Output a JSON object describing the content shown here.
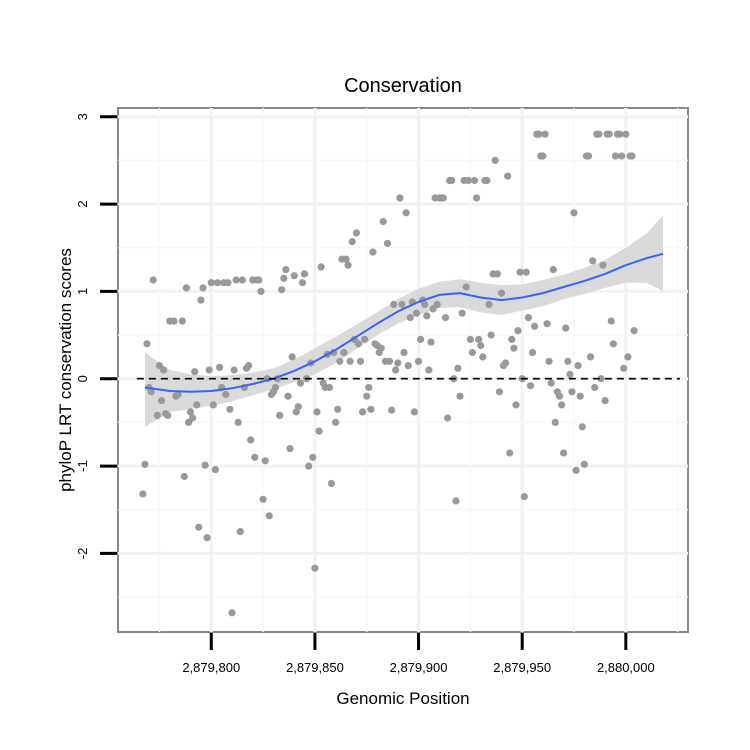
{
  "chart_data": {
    "type": "scatter",
    "title": "Conservation",
    "xlabel": "Genomic Position",
    "ylabel": "phyloP LRT conservation scores",
    "xlim": [
      2879755,
      2880030
    ],
    "ylim": [
      -2.9,
      3.1
    ],
    "x_ticks": [
      2879800,
      2879850,
      2879900,
      2879950,
      2880000
    ],
    "x_tick_labels": [
      "2,879,800",
      "2,879,850",
      "2,879,900",
      "2,879,950",
      "2,880,000"
    ],
    "y_ticks": [
      -2,
      -1,
      0,
      1,
      2,
      3
    ],
    "y_tick_labels": [
      "-2",
      "-1",
      "0",
      "1",
      "2",
      "3"
    ],
    "reference_line": {
      "y": 0,
      "style": "dashed"
    },
    "point_color": "#999999",
    "smooth_color": "#3366ff",
    "band_color": "#d3d3d3",
    "points": [
      [
        2879767,
        -1.32
      ],
      [
        2879768,
        -0.98
      ],
      [
        2879769,
        0.4
      ],
      [
        2879770,
        -0.1
      ],
      [
        2879771,
        -0.15
      ],
      [
        2879772,
        1.13
      ],
      [
        2879774,
        -0.42
      ],
      [
        2879775,
        0.15
      ],
      [
        2879776,
        -0.25
      ],
      [
        2879777,
        0.1
      ],
      [
        2879778,
        -0.4
      ],
      [
        2879779,
        -0.42
      ],
      [
        2879780,
        0.66
      ],
      [
        2879782,
        0.66
      ],
      [
        2879783,
        -0.2
      ],
      [
        2879784,
        -0.18
      ],
      [
        2879786,
        0.66
      ],
      [
        2879787,
        -1.12
      ],
      [
        2879788,
        1.04
      ],
      [
        2879789,
        -0.5
      ],
      [
        2879790,
        -0.38
      ],
      [
        2879791,
        -0.45
      ],
      [
        2879792,
        0.08
      ],
      [
        2879793,
        -0.3
      ],
      [
        2879794,
        -1.7
      ],
      [
        2879795,
        0.9
      ],
      [
        2879796,
        1.04
      ],
      [
        2879797,
        -0.99
      ],
      [
        2879798,
        -1.82
      ],
      [
        2879799,
        0.1
      ],
      [
        2879800,
        1.1
      ],
      [
        2879801,
        -0.3
      ],
      [
        2879802,
        -1.04
      ],
      [
        2879803,
        1.1
      ],
      [
        2879804,
        0.13
      ],
      [
        2879805,
        -0.1
      ],
      [
        2879806,
        1.1
      ],
      [
        2879807,
        -0.18
      ],
      [
        2879808,
        1.1
      ],
      [
        2879809,
        -0.35
      ],
      [
        2879810,
        -2.68
      ],
      [
        2879811,
        0.1
      ],
      [
        2879812,
        1.13
      ],
      [
        2879813,
        -0.5
      ],
      [
        2879814,
        -1.75
      ],
      [
        2879815,
        1.13
      ],
      [
        2879816,
        -0.1
      ],
      [
        2879817,
        0.12
      ],
      [
        2879818,
        0.15
      ],
      [
        2879819,
        -0.7
      ],
      [
        2879820,
        1.13
      ],
      [
        2879821,
        -0.9
      ],
      [
        2879822,
        1.13
      ],
      [
        2879823,
        1.13
      ],
      [
        2879824,
        1.0
      ],
      [
        2879825,
        -1.38
      ],
      [
        2879826,
        -0.94
      ],
      [
        2879827,
        0.0
      ],
      [
        2879828,
        -1.57
      ],
      [
        2879829,
        -0.18
      ],
      [
        2879830,
        -0.15
      ],
      [
        2879831,
        -0.1
      ],
      [
        2879832,
        0.0
      ],
      [
        2879833,
        -0.42
      ],
      [
        2879834,
        1.02
      ],
      [
        2879835,
        1.15
      ],
      [
        2879836,
        1.25
      ],
      [
        2879837,
        -0.2
      ],
      [
        2879838,
        -0.8
      ],
      [
        2879839,
        0.25
      ],
      [
        2879840,
        1.18
      ],
      [
        2879841,
        -0.38
      ],
      [
        2879842,
        -0.32
      ],
      [
        2879843,
        -0.05
      ],
      [
        2879844,
        1.1
      ],
      [
        2879845,
        1.2
      ],
      [
        2879846,
        0.0
      ],
      [
        2879847,
        -1.0
      ],
      [
        2879848,
        0.18
      ],
      [
        2879849,
        -0.9
      ],
      [
        2879850,
        -2.17
      ],
      [
        2879851,
        -0.38
      ],
      [
        2879852,
        -0.6
      ],
      [
        2879853,
        1.28
      ],
      [
        2879854,
        -0.05
      ],
      [
        2879855,
        -0.1
      ],
      [
        2879856,
        0.28
      ],
      [
        2879857,
        -0.1
      ],
      [
        2879858,
        -1.2
      ],
      [
        2879859,
        0.3
      ],
      [
        2879860,
        -0.5
      ],
      [
        2879861,
        -0.35
      ],
      [
        2879862,
        0.2
      ],
      [
        2879863,
        1.37
      ],
      [
        2879864,
        0.3
      ],
      [
        2879865,
        1.37
      ],
      [
        2879866,
        1.3
      ],
      [
        2879867,
        0.2
      ],
      [
        2879868,
        1.57
      ],
      [
        2879869,
        0.45
      ],
      [
        2879870,
        1.67
      ],
      [
        2879871,
        0.4
      ],
      [
        2879872,
        0.2
      ],
      [
        2879873,
        -0.38
      ],
      [
        2879874,
        0.45
      ],
      [
        2879875,
        -0.2
      ],
      [
        2879876,
        -0.1
      ],
      [
        2879877,
        -0.35
      ],
      [
        2879878,
        1.45
      ],
      [
        2879879,
        0.4
      ],
      [
        2879880,
        0.38
      ],
      [
        2879881,
        0.3
      ],
      [
        2879882,
        0.35
      ],
      [
        2879883,
        1.8
      ],
      [
        2879884,
        0.2
      ],
      [
        2879885,
        1.55
      ],
      [
        2879886,
        0.2
      ],
      [
        2879887,
        -0.36
      ],
      [
        2879888,
        0.85
      ],
      [
        2879889,
        0.1
      ],
      [
        2879890,
        0.18
      ],
      [
        2879891,
        2.07
      ],
      [
        2879892,
        0.85
      ],
      [
        2879893,
        0.3
      ],
      [
        2879894,
        1.9
      ],
      [
        2879895,
        0.15
      ],
      [
        2879896,
        0.7
      ],
      [
        2879897,
        0.88
      ],
      [
        2879898,
        -0.38
      ],
      [
        2879899,
        0.75
      ],
      [
        2879900,
        0.2
      ],
      [
        2879901,
        0.45
      ],
      [
        2879902,
        0.9
      ],
      [
        2879903,
        0.85
      ],
      [
        2879904,
        0.72
      ],
      [
        2879905,
        0.1
      ],
      [
        2879906,
        0.42
      ],
      [
        2879907,
        0.8
      ],
      [
        2879908,
        2.07
      ],
      [
        2879909,
        0.85
      ],
      [
        2879910,
        2.07
      ],
      [
        2879911,
        2.07
      ],
      [
        2879912,
        2.07
      ],
      [
        2879913,
        0.7
      ],
      [
        2879914,
        -0.45
      ],
      [
        2879915,
        2.27
      ],
      [
        2879916,
        2.27
      ],
      [
        2879917,
        0.0
      ],
      [
        2879918,
        -1.4
      ],
      [
        2879919,
        0.12
      ],
      [
        2879920,
        -0.2
      ],
      [
        2879921,
        0.75
      ],
      [
        2879922,
        2.27
      ],
      [
        2879923,
        1.05
      ],
      [
        2879924,
        2.27
      ],
      [
        2879925,
        0.45
      ],
      [
        2879926,
        0.3
      ],
      [
        2879927,
        2.27
      ],
      [
        2879928,
        2.07
      ],
      [
        2879929,
        0.45
      ],
      [
        2879930,
        0.38
      ],
      [
        2879931,
        0.25
      ],
      [
        2879932,
        2.27
      ],
      [
        2879933,
        2.27
      ],
      [
        2879934,
        0.85
      ],
      [
        2879935,
        0.5
      ],
      [
        2879936,
        1.2
      ],
      [
        2879937,
        2.5
      ],
      [
        2879938,
        1.2
      ],
      [
        2879939,
        -0.15
      ],
      [
        2879940,
        0.98
      ],
      [
        2879941,
        0.15
      ],
      [
        2879942,
        0.18
      ],
      [
        2879943,
        2.32
      ],
      [
        2879944,
        -0.85
      ],
      [
        2879945,
        0.45
      ],
      [
        2879946,
        0.35
      ],
      [
        2879947,
        -0.3
      ],
      [
        2879948,
        0.55
      ],
      [
        2879949,
        1.22
      ],
      [
        2879950,
        0.0
      ],
      [
        2879951,
        -1.35
      ],
      [
        2879952,
        1.22
      ],
      [
        2879953,
        0.7
      ],
      [
        2879954,
        -0.08
      ],
      [
        2879955,
        0.3
      ],
      [
        2879956,
        0.6
      ],
      [
        2879957,
        2.8
      ],
      [
        2879958,
        2.8
      ],
      [
        2879959,
        2.55
      ],
      [
        2879960,
        2.55
      ],
      [
        2879961,
        2.8
      ],
      [
        2879962,
        0.63
      ],
      [
        2879963,
        0.2
      ],
      [
        2879964,
        -0.05
      ],
      [
        2879965,
        1.25
      ],
      [
        2879966,
        -0.5
      ],
      [
        2879967,
        -0.15
      ],
      [
        2879968,
        -0.2
      ],
      [
        2879969,
        -0.3
      ],
      [
        2879970,
        -0.85
      ],
      [
        2879971,
        0.58
      ],
      [
        2879972,
        0.2
      ],
      [
        2879973,
        0.05
      ],
      [
        2879974,
        -0.15
      ],
      [
        2879975,
        1.9
      ],
      [
        2879976,
        -1.05
      ],
      [
        2879977,
        0.15
      ],
      [
        2879978,
        -0.2
      ],
      [
        2879979,
        -0.55
      ],
      [
        2879980,
        -0.98
      ],
      [
        2879981,
        2.55
      ],
      [
        2879982,
        2.55
      ],
      [
        2879983,
        0.25
      ],
      [
        2879984,
        1.35
      ],
      [
        2879985,
        -0.1
      ],
      [
        2879986,
        2.8
      ],
      [
        2879987,
        2.8
      ],
      [
        2879988,
        0.0
      ],
      [
        2879989,
        1.3
      ],
      [
        2879990,
        -0.25
      ],
      [
        2879991,
        2.8
      ],
      [
        2879992,
        2.8
      ],
      [
        2879993,
        0.66
      ],
      [
        2879994,
        0.4
      ],
      [
        2879995,
        2.55
      ],
      [
        2879996,
        2.8
      ],
      [
        2879997,
        2.8
      ],
      [
        2879998,
        2.55
      ],
      [
        2879999,
        0.12
      ],
      [
        2880000,
        2.8
      ],
      [
        2880001,
        0.25
      ],
      [
        2880002,
        2.55
      ],
      [
        2880003,
        2.55
      ],
      [
        2880004,
        0.55
      ]
    ],
    "smooth": [
      [
        2879768,
        -0.1
      ],
      [
        2879780,
        -0.14
      ],
      [
        2879790,
        -0.15
      ],
      [
        2879800,
        -0.14
      ],
      [
        2879810,
        -0.11
      ],
      [
        2879820,
        -0.06
      ],
      [
        2879830,
        0.0
      ],
      [
        2879840,
        0.09
      ],
      [
        2879850,
        0.2
      ],
      [
        2879860,
        0.33
      ],
      [
        2879870,
        0.48
      ],
      [
        2879880,
        0.63
      ],
      [
        2879890,
        0.77
      ],
      [
        2879900,
        0.88
      ],
      [
        2879910,
        0.96
      ],
      [
        2879920,
        0.98
      ],
      [
        2879930,
        0.93
      ],
      [
        2879940,
        0.9
      ],
      [
        2879950,
        0.93
      ],
      [
        2879960,
        0.98
      ],
      [
        2879970,
        1.05
      ],
      [
        2879980,
        1.12
      ],
      [
        2879990,
        1.2
      ],
      [
        2880000,
        1.3
      ],
      [
        2880010,
        1.38
      ],
      [
        2880018,
        1.43
      ]
    ],
    "band_upper": [
      0.3,
      0.1,
      0.05,
      0.03,
      0.04,
      0.07,
      0.12,
      0.22,
      0.35,
      0.48,
      0.62,
      0.76,
      0.91,
      1.03,
      1.11,
      1.14,
      1.1,
      1.07,
      1.08,
      1.13,
      1.19,
      1.27,
      1.36,
      1.5,
      1.66,
      1.87
    ],
    "band_lower": [
      -0.55,
      -0.38,
      -0.35,
      -0.31,
      -0.26,
      -0.19,
      -0.12,
      -0.04,
      0.05,
      0.18,
      0.34,
      0.5,
      0.63,
      0.73,
      0.81,
      0.82,
      0.76,
      0.73,
      0.78,
      0.83,
      0.91,
      0.97,
      1.04,
      1.1,
      1.1,
      1.0
    ]
  }
}
